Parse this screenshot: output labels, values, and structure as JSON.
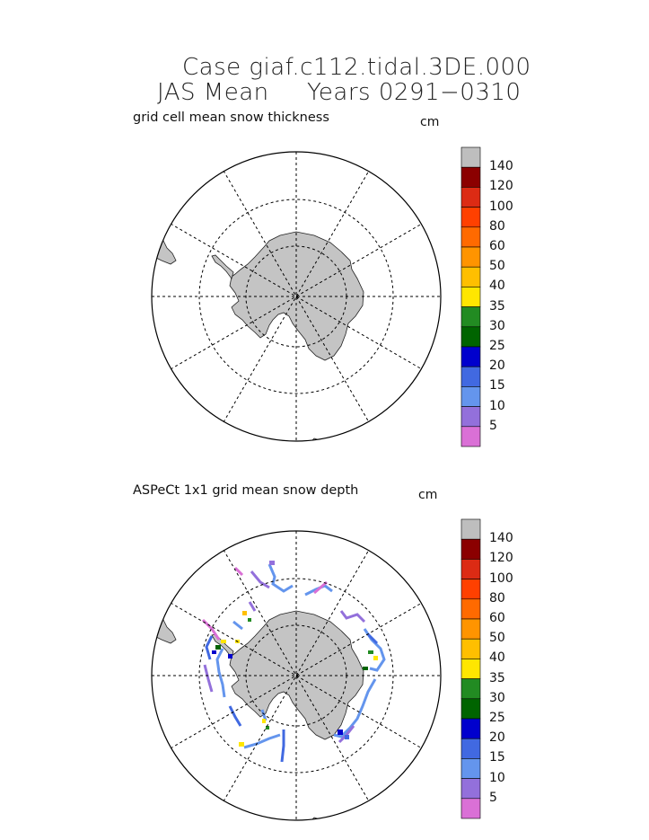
{
  "header": {
    "line1": "Case giaf.c112.tidal.3DE.000",
    "line2_left": "JAS Mean",
    "line2_right": "Years 0291−0310"
  },
  "panels": [
    {
      "label": "grid cell mean snow thickness",
      "unit": "cm"
    },
    {
      "label": "ASPeCt 1x1 grid mean snow depth",
      "unit": "cm"
    }
  ],
  "colorbar": {
    "ticks": [
      "140",
      "120",
      "100",
      "80",
      "60",
      "50",
      "40",
      "35",
      "30",
      "25",
      "20",
      "15",
      "10",
      "5"
    ],
    "colors": [
      "#bebebe",
      "#8b0000",
      "#dc2b14",
      "#ff4000",
      "#ff6a00",
      "#ff9400",
      "#ffbf00",
      "#ffe600",
      "#228b22",
      "#006400",
      "#0000cd",
      "#4169e1",
      "#6495ed",
      "#9370db",
      "#da70d6"
    ]
  },
  "colors": {
    "land": "#c4c4c4",
    "grid": "#000000",
    "background": "#ffffff"
  }
}
